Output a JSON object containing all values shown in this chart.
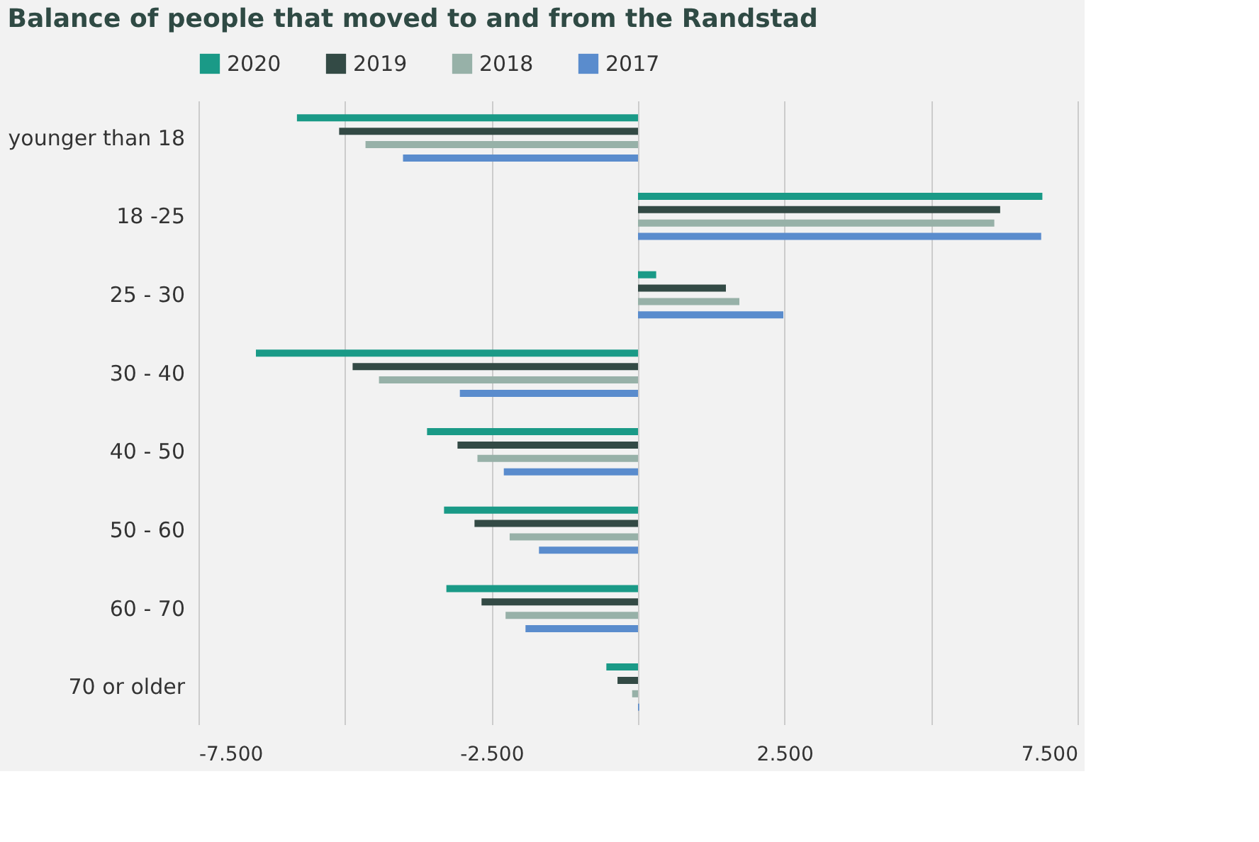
{
  "chart_data": {
    "type": "bar",
    "orientation": "horizontal",
    "title": "Balance of people that moved to and from the Randstad",
    "categories": [
      "younger than 18",
      "18 -25",
      "25 - 30",
      "30 - 40",
      "40 - 50",
      "50 - 60",
      "60 - 70",
      "70 or older"
    ],
    "series": [
      {
        "name": "2020",
        "color": "#1a9a87",
        "values": [
          -5820,
          6900,
          310,
          -6520,
          -3600,
          -3310,
          -3270,
          -540
        ]
      },
      {
        "name": "2019",
        "color": "#334a45",
        "values": [
          -5100,
          6180,
          1500,
          -4870,
          -3080,
          -2790,
          -2670,
          -350
        ]
      },
      {
        "name": "2018",
        "color": "#97b1a8",
        "values": [
          -4650,
          6080,
          1730,
          -4420,
          -2740,
          -2190,
          -2260,
          -100
        ]
      },
      {
        "name": "2017",
        "color": "#5a8ccd",
        "values": [
          -4010,
          6880,
          2480,
          -3040,
          -2290,
          -1690,
          -1920,
          20
        ]
      }
    ],
    "xlim": [
      -7500,
      7500
    ],
    "xticks": [
      {
        "value": -7500,
        "label": "-7.500"
      },
      {
        "value": -5000,
        "label": null
      },
      {
        "value": -2500,
        "label": "-2.500"
      },
      {
        "value": 0,
        "label": null
      },
      {
        "value": 2500,
        "label": "2.500"
      },
      {
        "value": 5000,
        "label": null
      },
      {
        "value": 7500,
        "label": "7.500"
      }
    ],
    "grid": "x",
    "legend": "top"
  }
}
